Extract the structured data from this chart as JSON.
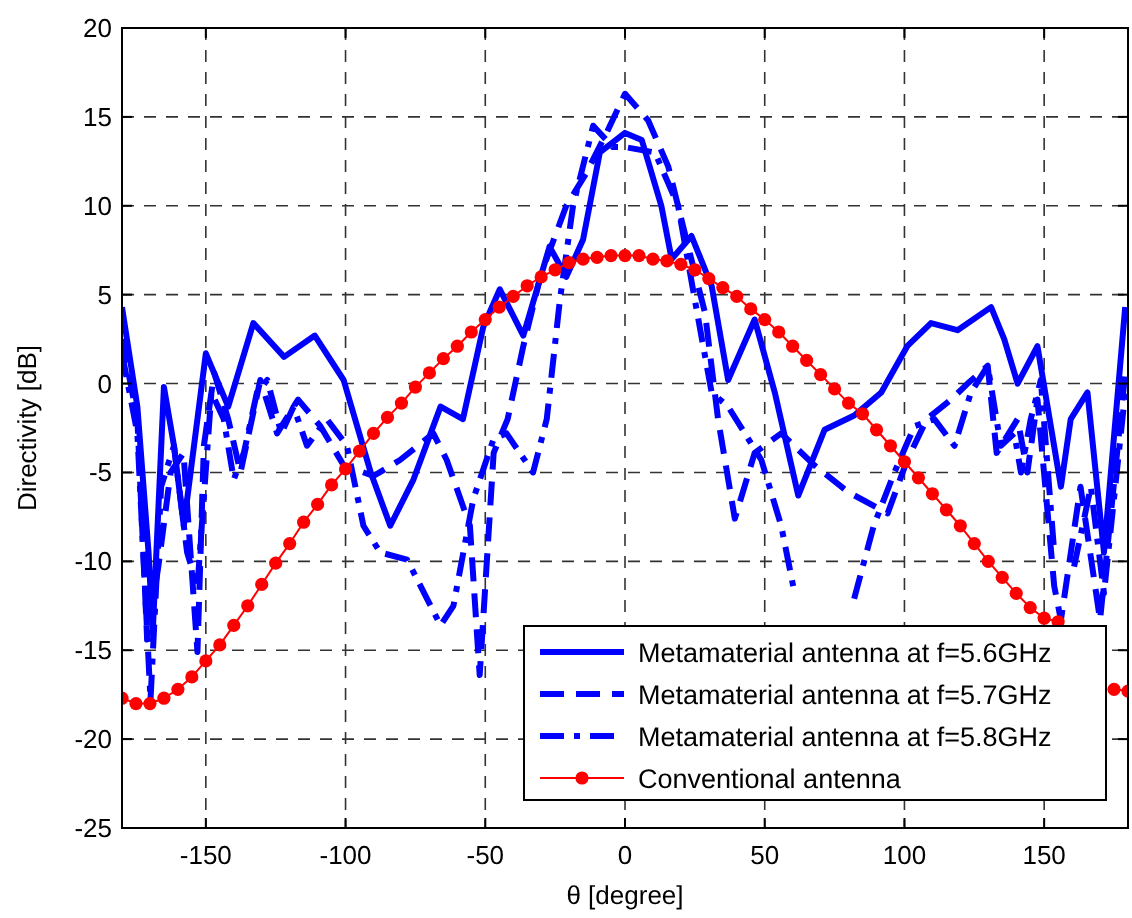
{
  "chart_data": {
    "type": "line",
    "xlabel": "θ [degree]",
    "ylabel": "Directivity [dB]",
    "xlim": [
      -180,
      180
    ],
    "ylim": [
      -25,
      20
    ],
    "xticks": [
      -150,
      -100,
      -50,
      0,
      50,
      100,
      150
    ],
    "yticks": [
      -25,
      -20,
      -15,
      -10,
      -5,
      0,
      5,
      10,
      15,
      20
    ],
    "grid": true,
    "legend": "bottom right",
    "series": [
      {
        "name": "Metamaterial antenna at f=5.6GHz",
        "color": "#0000ff",
        "line_style": "solid",
        "marker": "none",
        "x": [
          -180,
          -174.5,
          -170.5,
          -169,
          -165,
          -161.4,
          -157.9,
          -150,
          -142,
          -133,
          -122,
          -111,
          -100.7,
          -91,
          -84,
          -75.7,
          -66,
          -58,
          -50.7,
          -44.8,
          -36.4,
          -27,
          -21,
          -15,
          -9,
          0,
          6,
          13,
          16.7,
          23.8,
          31,
          36.9,
          46.4,
          53.6,
          62,
          71.4,
          82,
          91.7,
          101,
          109.5,
          119,
          131,
          135.7,
          140.5,
          147.6,
          156,
          159.5,
          165.5,
          171.4,
          179
        ],
        "values": [
          4.3,
          -1.3,
          -9.5,
          -14,
          -0.2,
          -3.5,
          -8,
          1.7,
          -1.3,
          3.4,
          1.5,
          2.7,
          0.2,
          -5,
          -8,
          -5.4,
          -1.3,
          -2,
          3.2,
          5.3,
          2.7,
          7.7,
          6,
          8.1,
          13,
          14.1,
          13.7,
          10,
          7,
          8.3,
          5.5,
          0.2,
          3.6,
          -0.5,
          -6.3,
          -2.6,
          -1.8,
          -0.5,
          2.1,
          3.4,
          3,
          4.3,
          2.5,
          0,
          2.1,
          -5.8,
          -2,
          -0.5,
          -9.5,
          4.3
        ]
      },
      {
        "name": "Metamaterial antenna at f=5.7GHz",
        "color": "#0000ff",
        "line_style": "dashed",
        "marker": "none",
        "x": [
          -180,
          -174.5,
          -171,
          -167,
          -162.6,
          -158,
          -153,
          -150.7,
          -147,
          -142,
          -137.6,
          -130.5,
          -124.5,
          -117,
          -109,
          -100.7,
          -90,
          -80.5,
          -68.6,
          -63.8,
          -55.5,
          -52,
          -47,
          -42,
          -36.4,
          -30,
          -21,
          -14,
          -6.6,
          0,
          8.3,
          15.5,
          22.6,
          28.6,
          33.3,
          39.3,
          46.4,
          55.9,
          67.8,
          79.8,
          94,
          101,
          108,
          116.7,
          122.6,
          129.8,
          133,
          140.5,
          144,
          147.6,
          153.6,
          156,
          163,
          170,
          179
        ],
        "values": [
          2.5,
          -2,
          -14.4,
          -10.3,
          -5,
          -3.9,
          -15.1,
          -3.5,
          0.6,
          -2,
          -5,
          0.2,
          -2.8,
          -0.9,
          -2.4,
          -4.6,
          -5.2,
          -4.3,
          -2.8,
          -4.3,
          -8,
          -16.4,
          -3.9,
          -2,
          2.1,
          6.2,
          10,
          11.8,
          14.1,
          16.3,
          14.8,
          12.2,
          7.7,
          4,
          -2,
          -7.6,
          -3.9,
          -2.8,
          -4.6,
          -6.1,
          -7.3,
          -4.3,
          -2,
          -0.9,
          0,
          1,
          -3.9,
          -2,
          -5,
          -0.9,
          -11.4,
          -13.3,
          -5.8,
          -13.3,
          0.6
        ]
      },
      {
        "name": "Metamaterial antenna at f=5.8GHz",
        "color": "#0000ff",
        "line_style": "dashdot",
        "marker": "none",
        "x": [
          -180,
          -174.5,
          -169.8,
          -166,
          -161.4,
          -156.7,
          -153,
          -148,
          -143.6,
          -140,
          -136.4,
          -131.7,
          -128,
          -123,
          -118.6,
          -113.8,
          -106.7,
          -99.5,
          -93.6,
          -87.6,
          -78,
          -66,
          -61.4,
          -54.3,
          -47,
          -42.4,
          -32.9,
          -28,
          -23.3,
          -18.6,
          -11.4,
          -4.3,
          0,
          10.7,
          19,
          25,
          31,
          36.9,
          42.9,
          48.8,
          55.9,
          60.7,
          65.5,
          82,
          89,
          96.4,
          103.6,
          110.7,
          117.9,
          123.8,
          129.8,
          134.5,
          139.3,
          141.7,
          145.2,
          148.8,
          153.6,
          157,
          160.7,
          166.7,
          171.4,
          179
        ],
        "values": [
          1.7,
          -2.8,
          -17.8,
          -5.8,
          -3.5,
          -9.5,
          -11.4,
          -0.5,
          -2,
          -5.4,
          -3.9,
          -0.5,
          0.2,
          -2.8,
          -1.3,
          -3.5,
          -2,
          -3.5,
          -8,
          -9.5,
          -9.9,
          -13.6,
          -12.5,
          -6.5,
          -3.1,
          -2.8,
          -5,
          -2,
          4.7,
          10,
          14.5,
          13.3,
          13.3,
          13,
          10,
          4.7,
          -0.5,
          -1.3,
          -2.8,
          -4.3,
          -8,
          -11.8,
          null,
          -12.1,
          -8,
          -5,
          -2.4,
          -2,
          -3.5,
          -0.5,
          1,
          -3.5,
          -2.8,
          -5,
          -2,
          0.2,
          -9.5,
          null,
          -10.3,
          -5.8,
          -11.8,
          -0.5
        ]
      },
      {
        "name": "Conventional antenna",
        "color": "#ff0000",
        "line_style": "solid",
        "marker": "circle",
        "x": [
          -180,
          -175,
          -170,
          -165,
          -160,
          -155,
          -150,
          -145,
          -140,
          -135,
          -130,
          -125,
          -120,
          -115,
          -110,
          -105,
          -100,
          -95,
          -90,
          -85,
          -80,
          -75,
          -70,
          -65,
          -60,
          -55,
          -50,
          -45,
          -40,
          -35,
          -30,
          -25,
          -20,
          -15,
          -10,
          -5,
          0,
          5,
          10,
          15,
          20,
          25,
          30,
          35,
          40,
          45,
          50,
          55,
          60,
          65,
          70,
          75,
          80,
          85,
          90,
          95,
          100,
          105,
          110,
          115,
          120,
          125,
          130,
          135,
          140,
          145,
          150,
          155,
          160,
          165,
          170,
          175,
          180
        ],
        "values": [
          -17.7,
          -18,
          -18,
          -17.7,
          -17.2,
          -16.5,
          -15.6,
          -14.7,
          -13.6,
          -12.5,
          -11.3,
          -10.1,
          -9,
          -7.8,
          -6.8,
          -5.7,
          -4.8,
          -3.8,
          -2.8,
          -1.9,
          -1.1,
          -0.2,
          0.6,
          1.4,
          2.1,
          2.9,
          3.6,
          4.3,
          4.9,
          5.5,
          6,
          6.4,
          6.8,
          7,
          7.1,
          7.2,
          7.2,
          7.2,
          7,
          6.9,
          6.7,
          6.4,
          5.9,
          5.4,
          4.9,
          4.2,
          3.6,
          2.9,
          2.1,
          1.3,
          0.5,
          -0.3,
          -1.1,
          -1.7,
          -2.6,
          -3.5,
          -4.4,
          -5.3,
          -6.2,
          -7.1,
          -8,
          -9,
          -10,
          -10.9,
          -11.8,
          -12.6,
          -13.2,
          -13.4,
          null,
          null,
          null,
          -17.2,
          -17.3
        ]
      }
    ]
  }
}
